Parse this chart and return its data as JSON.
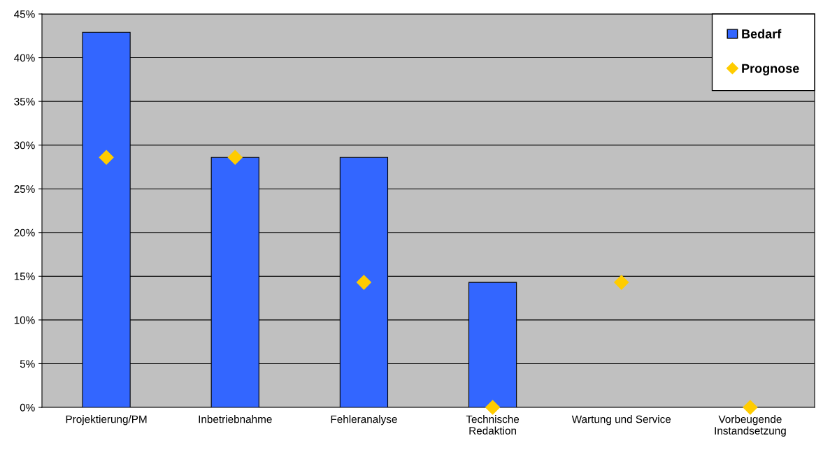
{
  "chart_data": {
    "type": "bar",
    "categories": [
      "Projektierung/PM",
      "Inbetriebnahme",
      "Fehleranalyse",
      "Technische\nRedaktion",
      "Wartung und Service",
      "Vorbeugende\nInstandsetzung"
    ],
    "series": [
      {
        "name": "Bedarf",
        "color": "#3366ff",
        "values": [
          42.9,
          28.6,
          28.6,
          14.3,
          null,
          null
        ]
      },
      {
        "name": "Prognose",
        "type": "scatter",
        "color": "#ffcc00",
        "marker": "diamond",
        "values": [
          28.6,
          28.6,
          14.3,
          0,
          14.3,
          0
        ]
      }
    ],
    "ylim": [
      0,
      45
    ],
    "yticks": [
      {
        "value": 0,
        "label": "0%"
      },
      {
        "value": 5,
        "label": "5%"
      },
      {
        "value": 10,
        "label": "10%"
      },
      {
        "value": 15,
        "label": "15%"
      },
      {
        "value": 20,
        "label": "20%"
      },
      {
        "value": 25,
        "label": "25%"
      },
      {
        "value": 30,
        "label": "30%"
      },
      {
        "value": 35,
        "label": "35%"
      },
      {
        "value": 40,
        "label": "40%"
      },
      {
        "value": 45,
        "label": "45%"
      }
    ],
    "grid": "y",
    "legend": "top right"
  }
}
